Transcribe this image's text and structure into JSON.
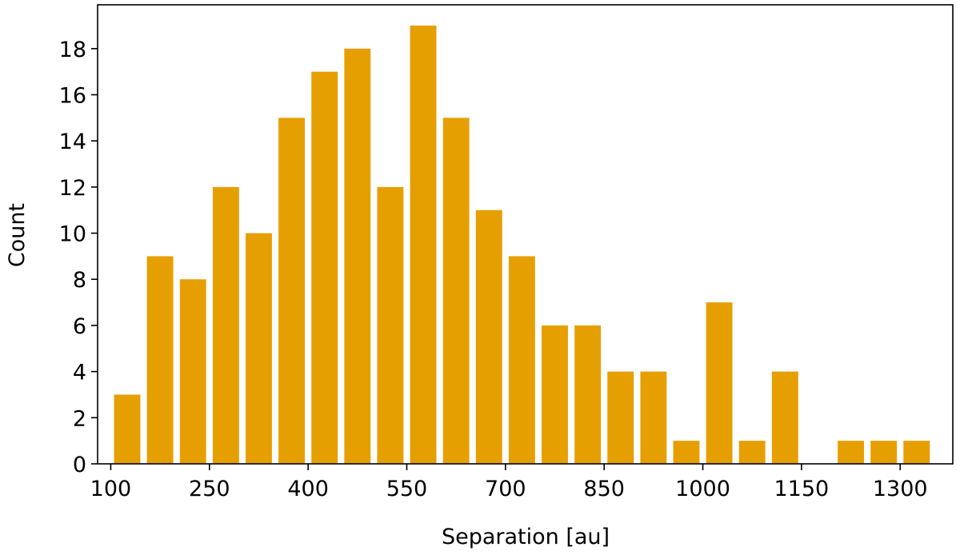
{
  "chart_data": {
    "type": "bar",
    "title": "",
    "xlabel": "Separation [au]",
    "ylabel": "Count",
    "bin_width": 50,
    "x": [
      125,
      175,
      225,
      275,
      325,
      375,
      425,
      475,
      525,
      575,
      625,
      675,
      725,
      775,
      825,
      875,
      925,
      975,
      1025,
      1075,
      1125,
      1175,
      1225,
      1275,
      1325
    ],
    "values": [
      3,
      9,
      8,
      12,
      10,
      15,
      17,
      18,
      12,
      19,
      15,
      11,
      9,
      6,
      6,
      4,
      4,
      1,
      7,
      1,
      4,
      0,
      1,
      1,
      1
    ],
    "xlim": [
      80,
      1380
    ],
    "ylim": [
      0,
      19.9
    ],
    "xticks": [
      100,
      250,
      400,
      550,
      700,
      850,
      1000,
      1150,
      1300
    ],
    "yticks": [
      0,
      2,
      4,
      6,
      8,
      10,
      12,
      14,
      16,
      18
    ],
    "bar_color": "#e69f00",
    "grid": false,
    "legend": false
  }
}
